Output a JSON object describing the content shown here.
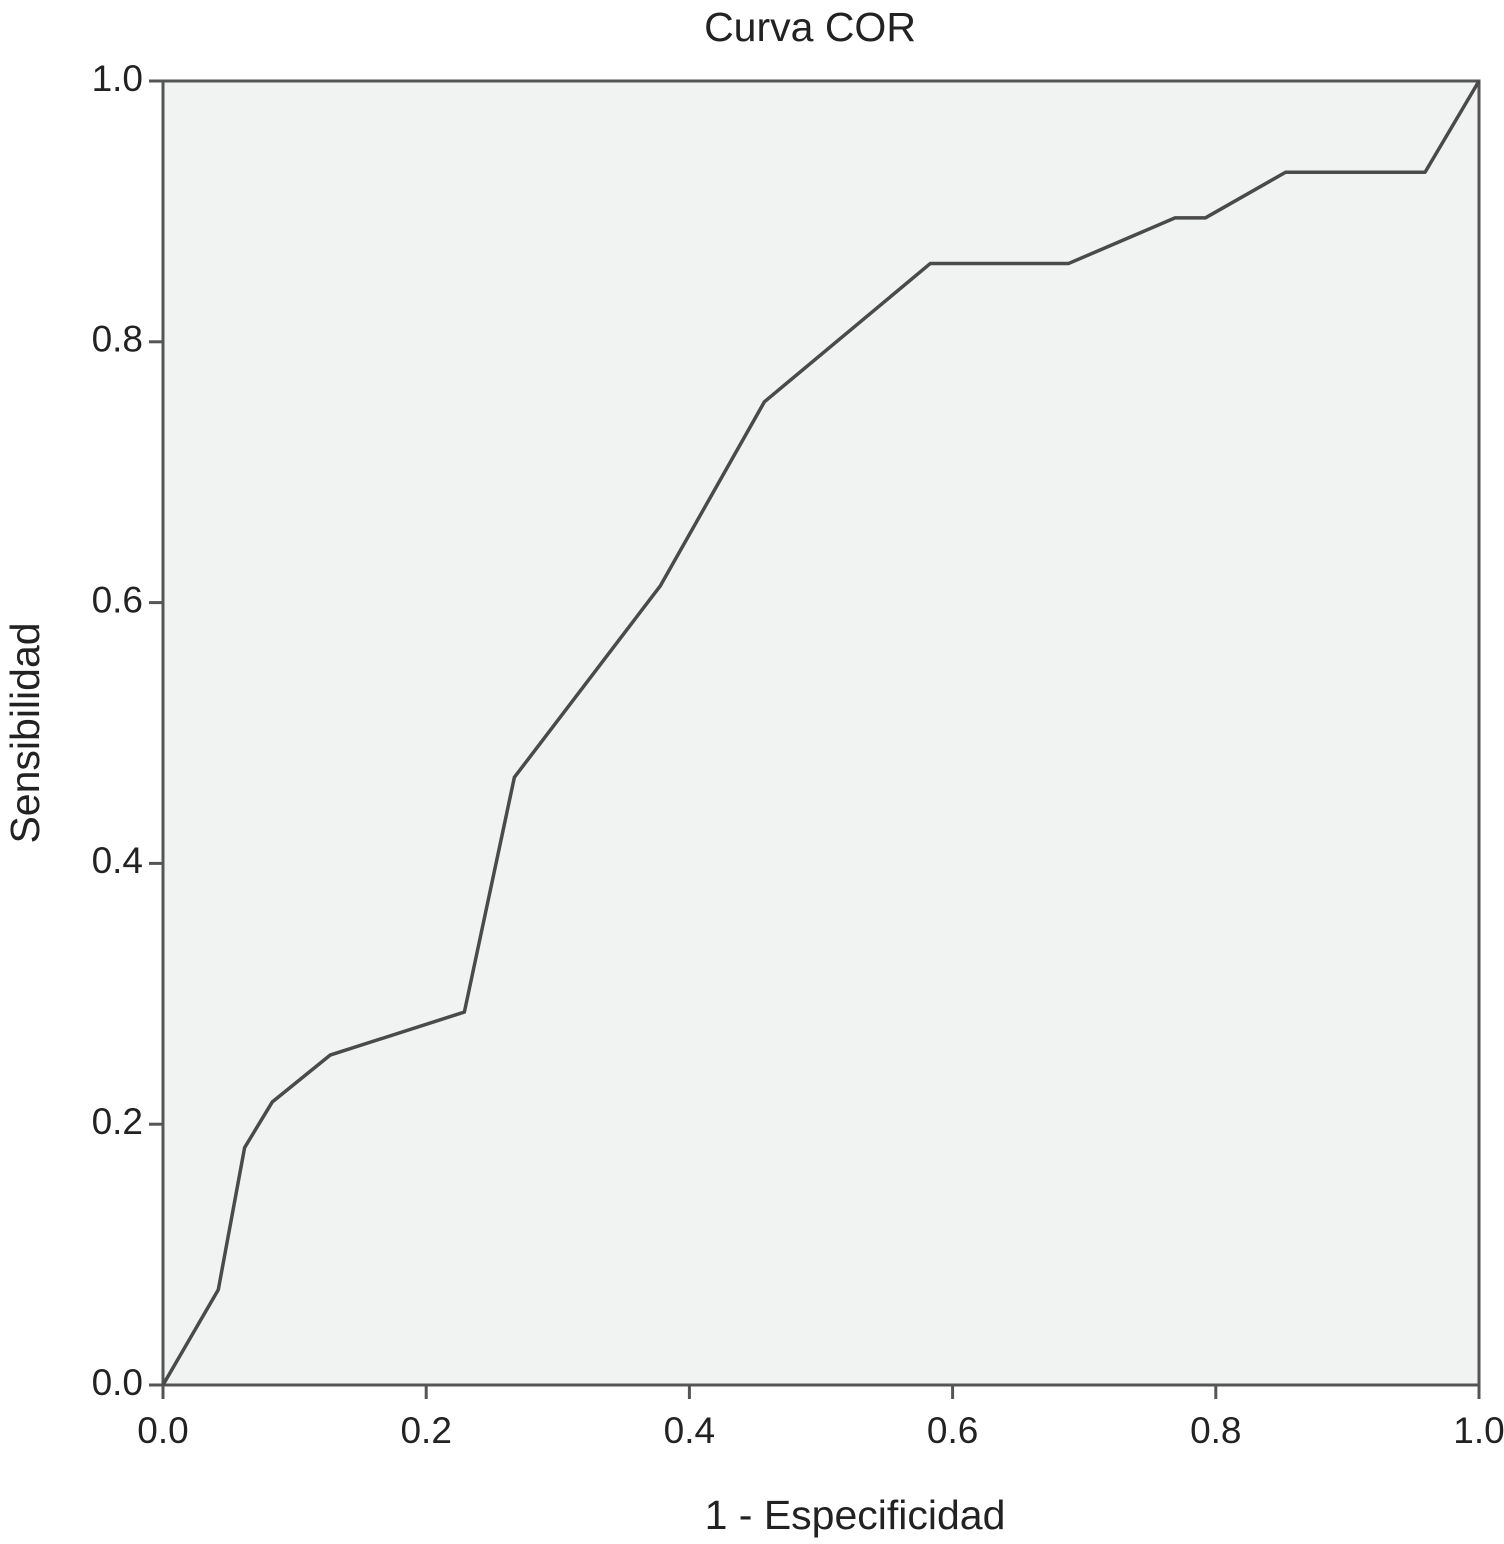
{
  "chart_data": {
    "type": "line",
    "title": "Curva COR",
    "x_label": "1 - Especificidad",
    "y_label": "Sensibilidad",
    "x": [
      0,
      0.042,
      0.062,
      0.083,
      0.127,
      0.229,
      0.267,
      0.378,
      0.457,
      0.583,
      0.688,
      0.769,
      0.792,
      0.853,
      0.959,
      1
    ],
    "series": [
      {
        "color": "#4a4a4a",
        "values": [
          0,
          0.073,
          0.182,
          0.217,
          0.253,
          0.286,
          0.466,
          0.613,
          0.754,
          0.86,
          0.86,
          0.895,
          0.895,
          0.93,
          0.93,
          1
        ]
      }
    ],
    "xlim": [
      0,
      1
    ],
    "ylim": [
      0,
      1
    ],
    "xticks": [
      {
        "value": 0,
        "label": "0.0"
      },
      0.2,
      0.4,
      0.6,
      0.8,
      {
        "value": 1,
        "label": "1.0"
      }
    ],
    "yticks": [
      {
        "value": 0,
        "label": "0.0"
      },
      0.2,
      0.4,
      0.6,
      0.8,
      {
        "value": 1,
        "label": "1.0"
      }
    ],
    "background": "#f1f2f2"
  }
}
